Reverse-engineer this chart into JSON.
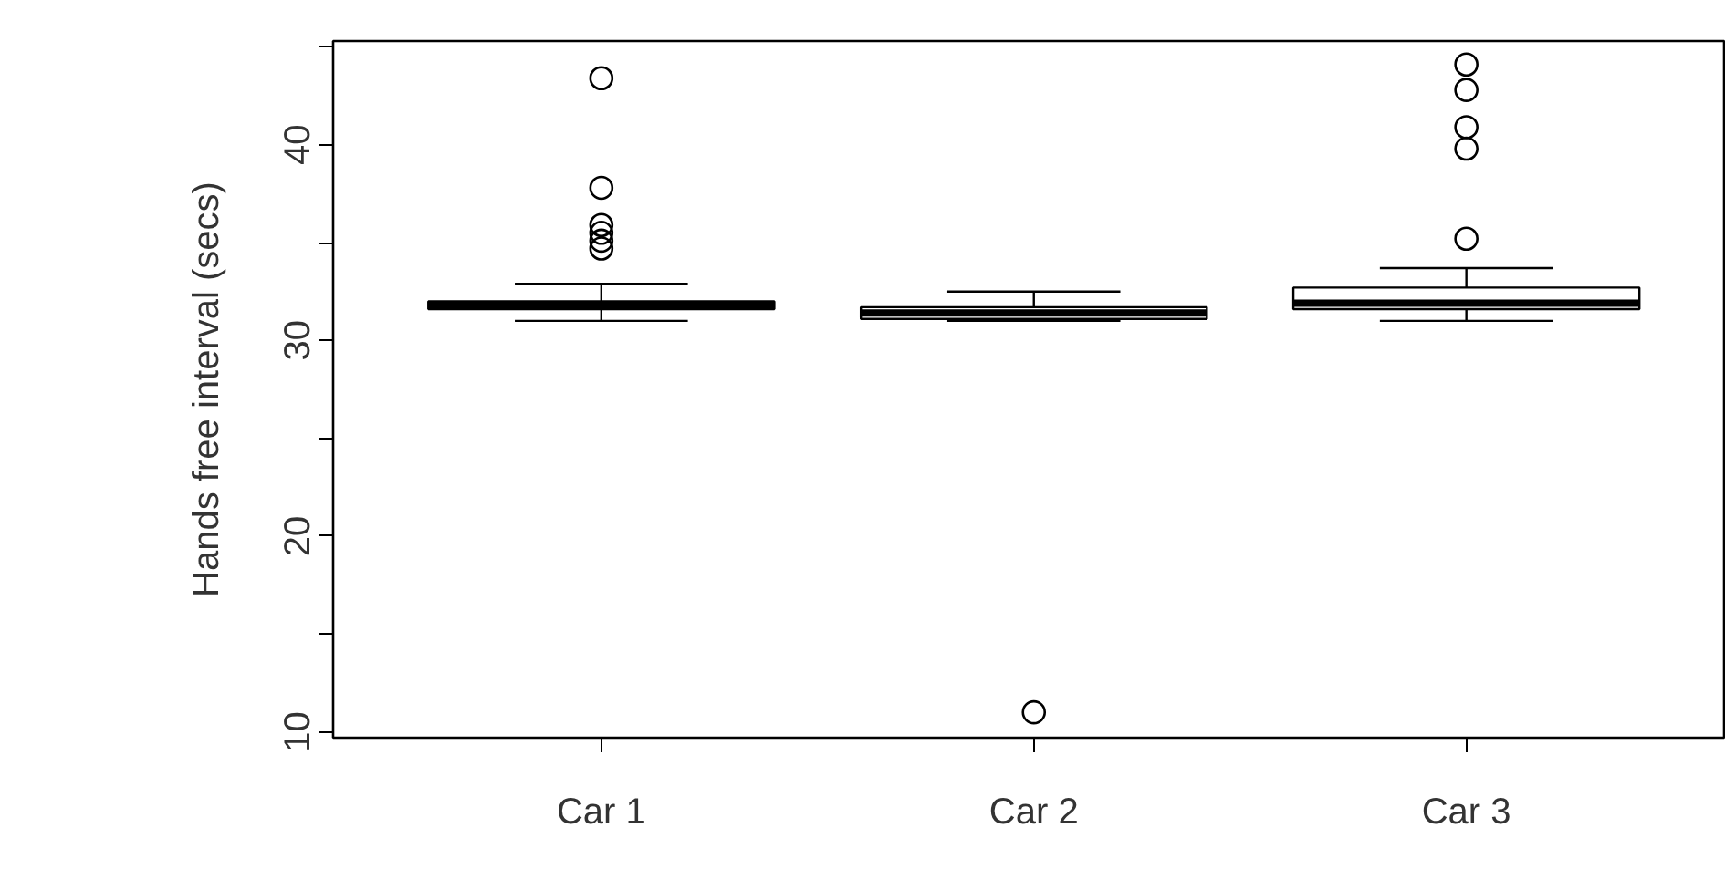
{
  "chart_data": {
    "type": "box",
    "ylabel": "Hands free interval (secs)",
    "categories": [
      "Car 1",
      "Car 2",
      "Car 3"
    ],
    "boxes": [
      {
        "low": 31.0,
        "q1": 31.6,
        "median": 31.8,
        "q3": 32.0,
        "high": 32.9,
        "outliers": [
          43.4,
          37.8,
          35.9,
          35.5,
          35.1,
          34.7
        ]
      },
      {
        "low": 31.0,
        "q1": 31.1,
        "median": 31.4,
        "q3": 31.7,
        "high": 32.5,
        "outliers": [
          11.0
        ]
      },
      {
        "low": 31.0,
        "q1": 31.6,
        "median": 31.9,
        "q3": 32.7,
        "high": 33.7,
        "outliers": [
          44.1,
          42.8,
          40.9,
          39.8,
          35.2
        ]
      }
    ],
    "ylim": [
      9.7,
      45.3
    ],
    "yticks": [
      10,
      {
        "value": 15,
        "label": null
      },
      20,
      {
        "value": 25,
        "label": null
      },
      30,
      {
        "value": 35,
        "label": null
      },
      40,
      {
        "value": 45,
        "label": null
      }
    ],
    "color": "#ffffff",
    "grid": false,
    "marker": "circle"
  }
}
